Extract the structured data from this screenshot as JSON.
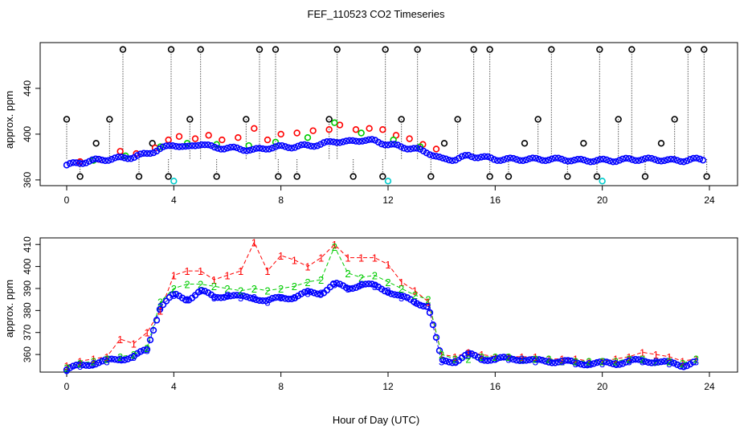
{
  "title": "FEF_110523  CO2 Timeseries",
  "colors": {
    "black": "#000000",
    "red": "#ff0000",
    "green": "#00cc00",
    "blue": "#0000ff",
    "cyan": "#00cccc"
  },
  "chart_data": [
    {
      "type": "scatter",
      "panel": "top",
      "ylabel": "approx. ppm",
      "xlim": [
        0,
        24
      ],
      "ylim": [
        355,
        480
      ],
      "x_ticks": [
        0,
        4,
        8,
        12,
        16,
        20,
        24
      ],
      "x_tick_labels": [
        "0",
        "4",
        "8",
        "12",
        "16",
        "20",
        "24"
      ],
      "y_ticks": [
        360,
        400,
        440
      ],
      "y_tick_labels": [
        "360",
        "400",
        "440"
      ],
      "baseline_series": {
        "name": "",
        "color": "#0000ff",
        "x": [
          0.0,
          0.5,
          1.0,
          1.5,
          2.0,
          2.5,
          3.0,
          3.5,
          4.0,
          4.5,
          5.0,
          5.5,
          6.0,
          6.5,
          7.0,
          7.5,
          8.0,
          8.5,
          9.0,
          9.5,
          10.0,
          10.5,
          11.0,
          11.5,
          12.0,
          12.5,
          13.0,
          13.5,
          14.0,
          14.5,
          15.0,
          15.5,
          16.0,
          16.5,
          17.0,
          17.5,
          18.0,
          18.5,
          19.0,
          19.5,
          20.0,
          20.5,
          21.0,
          21.5,
          22.0,
          22.5,
          23.0,
          23.5,
          23.8
        ],
        "y": [
          373,
          375,
          377,
          378,
          379,
          380,
          383,
          387,
          391,
          388,
          392,
          388,
          388,
          387,
          386,
          388,
          389,
          389,
          390,
          391,
          394,
          393,
          395,
          394,
          391,
          389,
          387,
          384,
          378,
          378,
          381,
          380,
          378,
          378,
          378,
          378,
          378,
          378,
          377,
          377,
          377,
          377,
          378,
          378,
          378,
          377,
          377,
          378,
          378
        ]
      },
      "red_series": {
        "name": "",
        "color": "#ff0000",
        "x": [
          0.5,
          1.2,
          2.0,
          2.6,
          3.3,
          3.8,
          4.2,
          4.8,
          5.3,
          5.8,
          6.4,
          7.0,
          7.5,
          8.0,
          8.6,
          9.2,
          9.8,
          10.2,
          10.8,
          11.3,
          11.8,
          12.3,
          12.8,
          13.3,
          13.8
        ],
        "y": [
          376,
          378,
          385,
          383,
          388,
          395,
          398,
          396,
          399,
          395,
          397,
          405,
          395,
          400,
          401,
          403,
          404,
          408,
          404,
          405,
          404,
          399,
          396,
          391,
          387
        ]
      },
      "green_series": {
        "name": "",
        "color": "#00cc00",
        "x": [
          1.0,
          2.2,
          3.5,
          4.5,
          5.6,
          6.8,
          7.8,
          9.0,
          10.0,
          11.0,
          12.2,
          13.2
        ],
        "y": [
          377,
          381,
          389,
          392,
          391,
          390,
          393,
          397,
          410,
          401,
          395,
          389
        ]
      },
      "spikes": {
        "name": "",
        "color": "#000000",
        "high_value": 474,
        "x": [
          2.1,
          3.9,
          5.0,
          7.2,
          7.8,
          10.1,
          11.9,
          13.1,
          15.2,
          15.8,
          18.1,
          19.9,
          21.1,
          23.2,
          23.8
        ],
        "mid_value": 413,
        "mid_x": [
          0.0,
          1.6,
          4.6,
          6.7,
          9.8,
          12.5,
          14.6,
          17.6,
          20.6,
          22.7
        ],
        "low_value": 363,
        "low_x": [
          0.5,
          2.7,
          3.8,
          5.6,
          7.9,
          8.6,
          10.7,
          11.8,
          13.6,
          15.8,
          16.5,
          18.7,
          19.8,
          21.6,
          23.9
        ],
        "low2_value": 392,
        "low2_x": [
          1.1,
          3.2,
          14.1,
          17.1,
          19.3,
          22.2
        ]
      },
      "cyan_points": {
        "name": "",
        "color": "#00cccc",
        "x": [
          4.0,
          12.0,
          20.0
        ],
        "y": [
          359,
          359,
          359
        ]
      }
    },
    {
      "type": "line",
      "panel": "bottom",
      "xlabel": "Hour of Day (UTC)",
      "ylabel": "approx. ppm",
      "xlim": [
        0,
        24
      ],
      "ylim": [
        352,
        413
      ],
      "x_ticks": [
        0,
        4,
        8,
        12,
        16,
        20,
        24
      ],
      "x_tick_labels": [
        "0",
        "4",
        "8",
        "12",
        "16",
        "20",
        "24"
      ],
      "y_ticks": [
        360,
        370,
        380,
        390,
        400,
        410
      ],
      "y_tick_labels": [
        "360",
        "370",
        "380",
        "390",
        "400",
        "410"
      ],
      "x": [
        0.0,
        0.5,
        1.0,
        1.5,
        2.0,
        2.5,
        3.0,
        3.5,
        4.0,
        4.5,
        5.0,
        5.5,
        6.0,
        6.5,
        7.0,
        7.5,
        8.0,
        8.5,
        9.0,
        9.5,
        10.0,
        10.5,
        11.0,
        11.5,
        12.0,
        12.5,
        13.0,
        13.5,
        14.0,
        14.5,
        15.0,
        15.5,
        16.0,
        16.5,
        17.0,
        17.5,
        18.0,
        18.5,
        19.0,
        19.5,
        20.0,
        20.5,
        21.0,
        21.5,
        22.0,
        22.5,
        23.0,
        23.5
      ],
      "series": [
        {
          "name": "1",
          "color": "#ff0000",
          "marker": "1",
          "values": [
            355,
            357,
            358,
            359,
            367,
            365,
            370,
            380,
            396,
            398,
            398,
            394,
            396,
            398,
            411,
            398,
            405,
            403,
            400,
            404,
            410,
            404,
            404,
            404,
            401,
            393,
            389,
            384,
            360,
            359,
            361,
            360,
            359,
            359,
            359,
            359,
            358,
            358,
            358,
            357,
            357,
            358,
            359,
            361,
            360,
            359,
            357,
            358
          ]
        },
        {
          "name": "2",
          "color": "#00cc00",
          "marker": "2",
          "values": [
            354,
            356,
            357,
            358,
            359,
            360,
            363,
            384,
            390,
            392,
            392,
            391,
            390,
            389,
            390,
            389,
            390,
            391,
            393,
            394,
            409,
            397,
            395,
            396,
            393,
            390,
            387,
            385,
            360,
            358,
            358,
            359,
            359,
            359,
            358,
            358,
            358,
            357,
            357,
            357,
            357,
            357,
            358,
            358,
            357,
            357,
            356,
            358
          ]
        },
        {
          "name": "3",
          "color": "#0000ff",
          "marker": "3",
          "values": [
            353,
            355,
            356,
            357,
            358,
            359,
            362,
            382,
            387,
            385,
            389,
            386,
            387,
            386,
            386,
            384,
            386,
            386,
            388,
            388,
            392,
            390,
            392,
            391,
            389,
            386,
            384,
            382,
            357,
            357,
            360,
            358,
            358,
            358,
            358,
            357,
            357,
            357,
            356,
            356,
            356,
            356,
            357,
            357,
            357,
            356,
            355,
            357
          ]
        }
      ]
    }
  ]
}
